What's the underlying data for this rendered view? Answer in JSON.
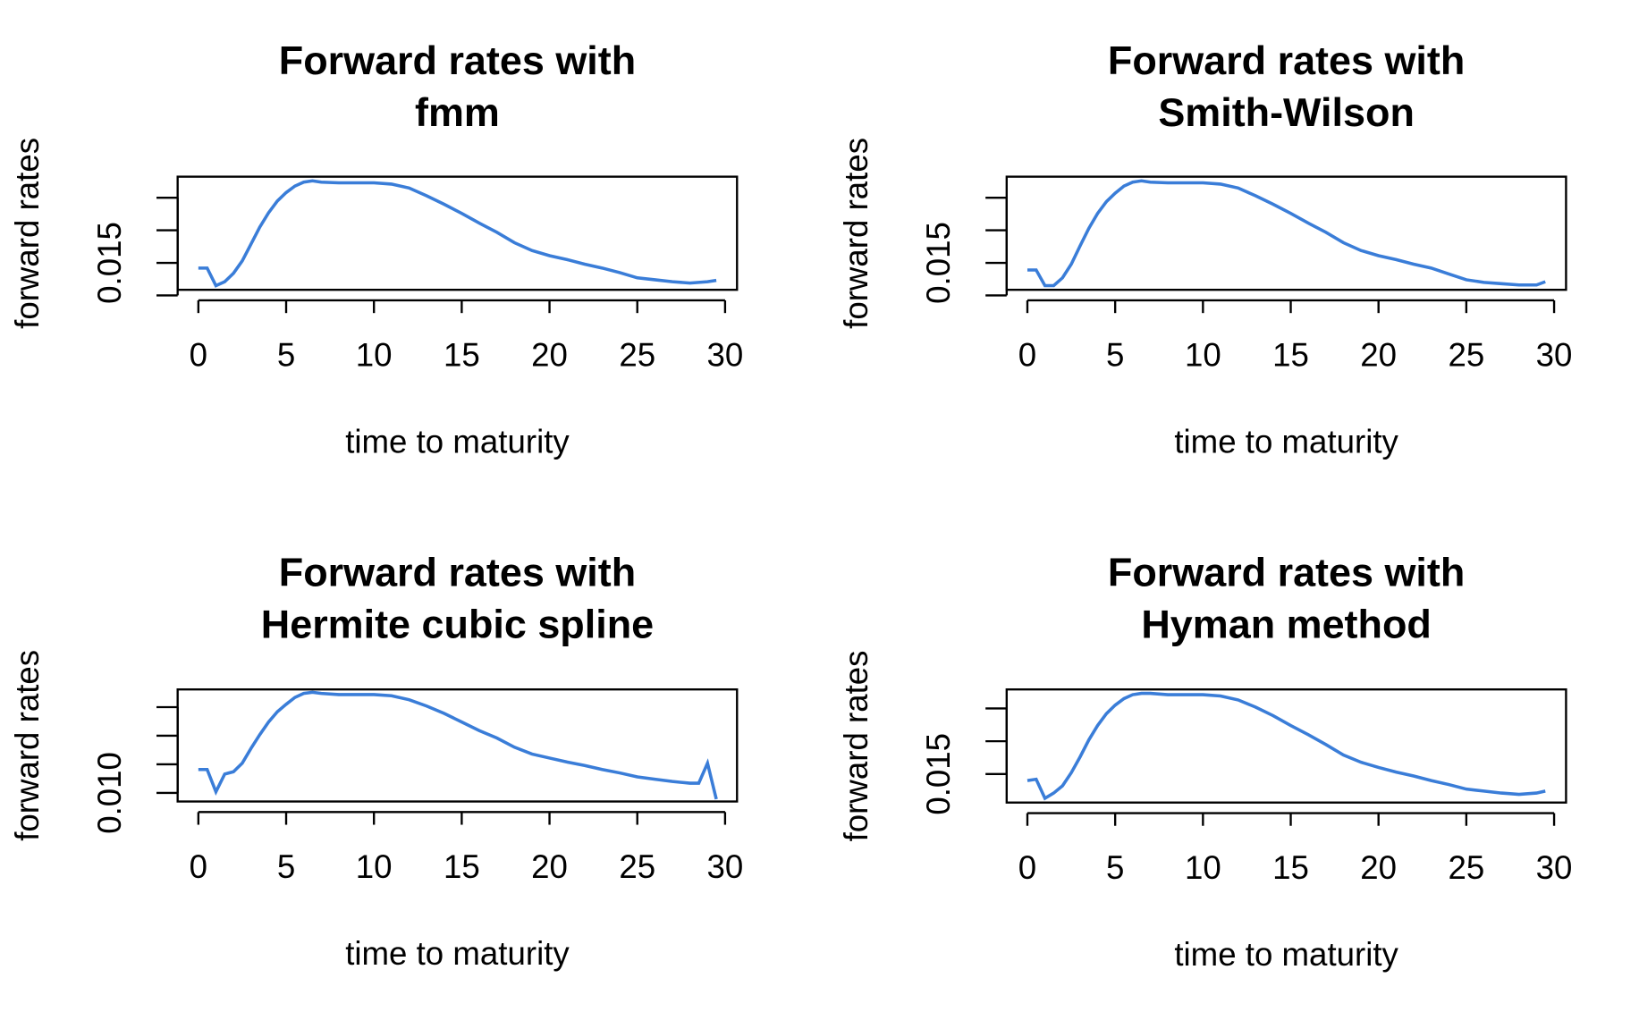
{
  "chart_data": [
    {
      "type": "line",
      "title": "Forward rates with\nfmm",
      "xlabel": "time to maturity",
      "ylabel": "forward rates",
      "x": [
        0,
        0.5,
        1,
        1.5,
        2,
        2.5,
        3,
        3.5,
        4,
        4.5,
        5,
        5.5,
        6,
        6.5,
        7,
        8,
        9,
        10,
        11,
        12,
        13,
        14,
        15,
        16,
        17,
        18,
        19,
        20,
        21,
        22,
        23,
        24,
        25,
        26,
        27,
        28,
        29,
        29.5
      ],
      "values": [
        0.0142,
        0.0142,
        0.0115,
        0.0121,
        0.0134,
        0.0153,
        0.0179,
        0.0205,
        0.0227,
        0.0245,
        0.0258,
        0.0268,
        0.0274,
        0.0276,
        0.0274,
        0.0273,
        0.0273,
        0.0273,
        0.0271,
        0.0265,
        0.0253,
        0.024,
        0.0226,
        0.0211,
        0.0197,
        0.0181,
        0.0169,
        0.0161,
        0.0155,
        0.0148,
        0.0142,
        0.0135,
        0.0127,
        0.0124,
        0.0121,
        0.0119,
        0.0121,
        0.0123
      ],
      "color": "#3a7dd8",
      "xlim": [
        -1.18,
        30.68
      ],
      "ylim": [
        0.01086,
        0.02824
      ],
      "xticks": [
        0,
        5,
        10,
        15,
        20,
        25,
        30
      ],
      "yticks": [
        {
          "value": 0.01,
          "label": null
        },
        0.015,
        {
          "value": 0.02,
          "label": null
        },
        {
          "value": 0.025,
          "label": null
        }
      ]
    },
    {
      "type": "line",
      "title": "Forward rates with\nSmith-Wilson",
      "xlabel": "time to maturity",
      "ylabel": "forward rates",
      "x": [
        0,
        0.5,
        1,
        1.5,
        2,
        2.5,
        3,
        3.5,
        4,
        4.5,
        5,
        5.5,
        6,
        6.5,
        7,
        8,
        9,
        10,
        11,
        12,
        13,
        14,
        15,
        16,
        17,
        18,
        19,
        20,
        21,
        22,
        23,
        24,
        25,
        26,
        27,
        28,
        29,
        29.5
      ],
      "values": [
        0.0139,
        0.0139,
        0.0115,
        0.0115,
        0.0127,
        0.0148,
        0.0176,
        0.0203,
        0.0226,
        0.0244,
        0.0257,
        0.0268,
        0.0274,
        0.0276,
        0.0274,
        0.0273,
        0.0273,
        0.0273,
        0.0271,
        0.0265,
        0.0253,
        0.024,
        0.0226,
        0.0211,
        0.0197,
        0.0181,
        0.0169,
        0.0161,
        0.0155,
        0.0148,
        0.0142,
        0.0133,
        0.0124,
        0.012,
        0.0118,
        0.0116,
        0.0116,
        0.0121
      ],
      "color": "#3a7dd8",
      "xlim": [
        -1.18,
        30.68
      ],
      "ylim": [
        0.01086,
        0.02824
      ],
      "xticks": [
        0,
        5,
        10,
        15,
        20,
        25,
        30
      ],
      "yticks": [
        {
          "value": 0.01,
          "label": null
        },
        0.015,
        {
          "value": 0.02,
          "label": null
        },
        {
          "value": 0.025,
          "label": null
        }
      ]
    },
    {
      "type": "line",
      "title": "Forward rates with\nHermite cubic spline",
      "xlabel": "time to maturity",
      "ylabel": "forward rates",
      "x": [
        0,
        0.5,
        1,
        1.5,
        2,
        2.5,
        3,
        3.5,
        4,
        4.5,
        5,
        5.5,
        6,
        6.5,
        7,
        8,
        9,
        10,
        11,
        12,
        13,
        14,
        15,
        16,
        17,
        18,
        19,
        20,
        21,
        22,
        23,
        24,
        25,
        26,
        27,
        28,
        28.5,
        29,
        29.5
      ],
      "values": [
        0.0141,
        0.0141,
        0.0102,
        0.0133,
        0.0137,
        0.0152,
        0.0178,
        0.0202,
        0.0224,
        0.0242,
        0.0255,
        0.0267,
        0.0274,
        0.0276,
        0.0274,
        0.0272,
        0.0272,
        0.0272,
        0.027,
        0.0263,
        0.0252,
        0.0239,
        0.0224,
        0.0209,
        0.0196,
        0.018,
        0.0168,
        0.0161,
        0.0154,
        0.0148,
        0.0141,
        0.0135,
        0.0128,
        0.0124,
        0.012,
        0.0117,
        0.0117,
        0.0152,
        0.0089
      ],
      "color": "#3a7dd8",
      "xlim": [
        -1.18,
        30.68
      ],
      "ylim": [
        0.0085,
        0.0281
      ],
      "xticks": [
        0,
        5,
        10,
        15,
        20,
        25,
        30
      ],
      "yticks": [
        {
          "value": 0.01,
          "label": "0.010"
        },
        {
          "value": 0.015,
          "label": null
        },
        {
          "value": 0.02,
          "label": null
        },
        {
          "value": 0.025,
          "label": null
        }
      ]
    },
    {
      "type": "line",
      "title": "Forward rates with\nHyman method",
      "xlabel": "time to maturity",
      "ylabel": "forward rates",
      "x": [
        0,
        0.5,
        1,
        1.5,
        2,
        2.5,
        3,
        3.5,
        4,
        4.5,
        5,
        5.5,
        6,
        6.5,
        7,
        8,
        9,
        10,
        11,
        12,
        13,
        14,
        15,
        16,
        17,
        18,
        19,
        20,
        21,
        22,
        23,
        24,
        25,
        26,
        27,
        28,
        29,
        29.5
      ],
      "values": [
        0.014,
        0.0142,
        0.0113,
        0.0121,
        0.0132,
        0.0152,
        0.0176,
        0.0202,
        0.0224,
        0.0242,
        0.0255,
        0.0265,
        0.0271,
        0.0273,
        0.0273,
        0.0271,
        0.0271,
        0.0271,
        0.0269,
        0.0263,
        0.0252,
        0.0239,
        0.0224,
        0.021,
        0.0195,
        0.0179,
        0.0168,
        0.016,
        0.0153,
        0.0147,
        0.014,
        0.0134,
        0.0127,
        0.0124,
        0.0121,
        0.0119,
        0.0121,
        0.0124
      ],
      "color": "#3a7dd8",
      "xlim": [
        -1.18,
        30.68
      ],
      "ylim": [
        0.01065,
        0.0279
      ],
      "xticks": [
        0,
        5,
        10,
        15,
        20,
        25,
        30
      ],
      "yticks": [
        0.015,
        {
          "value": 0.02,
          "label": null
        },
        {
          "value": 0.025,
          "label": null
        }
      ]
    }
  ]
}
